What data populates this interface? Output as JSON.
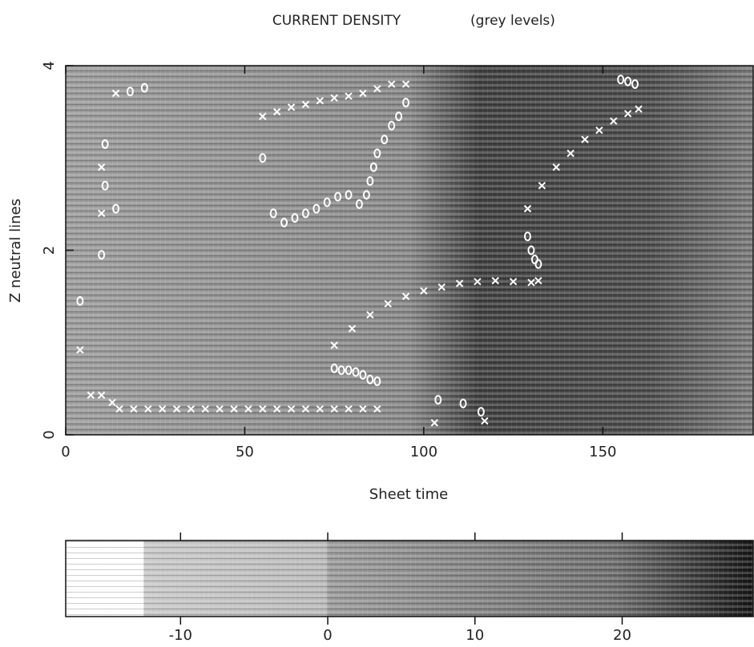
{
  "chart_data": [
    {
      "type": "scatter",
      "title": "CURRENT DENSITY",
      "subtitle": "(grey levels)",
      "x_label": "Sheet time",
      "y_label": "Z neutral lines",
      "xlim": [
        0,
        192
      ],
      "ylim": [
        0,
        4
      ],
      "xticks": [
        0,
        50,
        100,
        150
      ],
      "yticks": [
        0,
        2,
        4
      ],
      "series": [
        {
          "marker": "x",
          "color": "#ffffff",
          "x": [
            4,
            7,
            10,
            13,
            15,
            19,
            23,
            27,
            31,
            35,
            39,
            43,
            47,
            51,
            55,
            59,
            63,
            67,
            71,
            75,
            79,
            83,
            87,
            10,
            10,
            14,
            55,
            59,
            63,
            67,
            71,
            75,
            79,
            83,
            87,
            91,
            95,
            75,
            80,
            85,
            90,
            95,
            100,
            105,
            110,
            115,
            120,
            125,
            130,
            132,
            103,
            117,
            129,
            133,
            137,
            141,
            145,
            149,
            153,
            157,
            160
          ],
          "values": [
            0.92,
            0.43,
            0.43,
            0.35,
            0.28,
            0.28,
            0.28,
            0.28,
            0.28,
            0.28,
            0.28,
            0.28,
            0.28,
            0.28,
            0.28,
            0.28,
            0.28,
            0.28,
            0.28,
            0.28,
            0.28,
            0.28,
            0.28,
            2.4,
            2.9,
            3.7,
            3.45,
            3.5,
            3.55,
            3.58,
            3.62,
            3.65,
            3.67,
            3.7,
            3.75,
            3.8,
            3.8,
            0.97,
            1.15,
            1.3,
            1.42,
            1.5,
            1.56,
            1.6,
            1.64,
            1.66,
            1.67,
            1.66,
            1.65,
            1.67,
            0.13,
            0.15,
            2.45,
            2.7,
            2.9,
            3.05,
            3.2,
            3.3,
            3.4,
            3.48,
            3.53
          ]
        },
        {
          "marker": "o",
          "color": "#ffffff",
          "x": [
            18,
            22,
            11,
            11,
            14,
            4,
            10,
            55,
            58,
            61,
            64,
            67,
            70,
            73,
            76,
            79,
            82,
            84,
            85,
            86,
            87,
            89,
            91,
            93,
            95,
            75,
            77,
            79,
            81,
            83,
            85,
            87,
            104,
            111,
            116,
            129,
            130,
            131,
            132,
            155,
            157,
            159
          ],
          "values": [
            3.72,
            3.76,
            3.15,
            2.7,
            2.45,
            1.45,
            1.95,
            3.0,
            2.4,
            2.3,
            2.35,
            2.4,
            2.45,
            2.52,
            2.58,
            2.6,
            2.5,
            2.6,
            2.75,
            2.9,
            3.05,
            3.2,
            3.35,
            3.45,
            3.6,
            0.72,
            0.7,
            0.7,
            0.68,
            0.65,
            0.6,
            0.58,
            0.38,
            0.34,
            0.25,
            2.15,
            2.0,
            1.9,
            1.85,
            3.85,
            3.83,
            3.8
          ]
        }
      ]
    },
    {
      "type": "colorbar",
      "xlim": [
        -17.8,
        28.9
      ],
      "xticks": [
        -10,
        0,
        10,
        20
      ]
    }
  ]
}
